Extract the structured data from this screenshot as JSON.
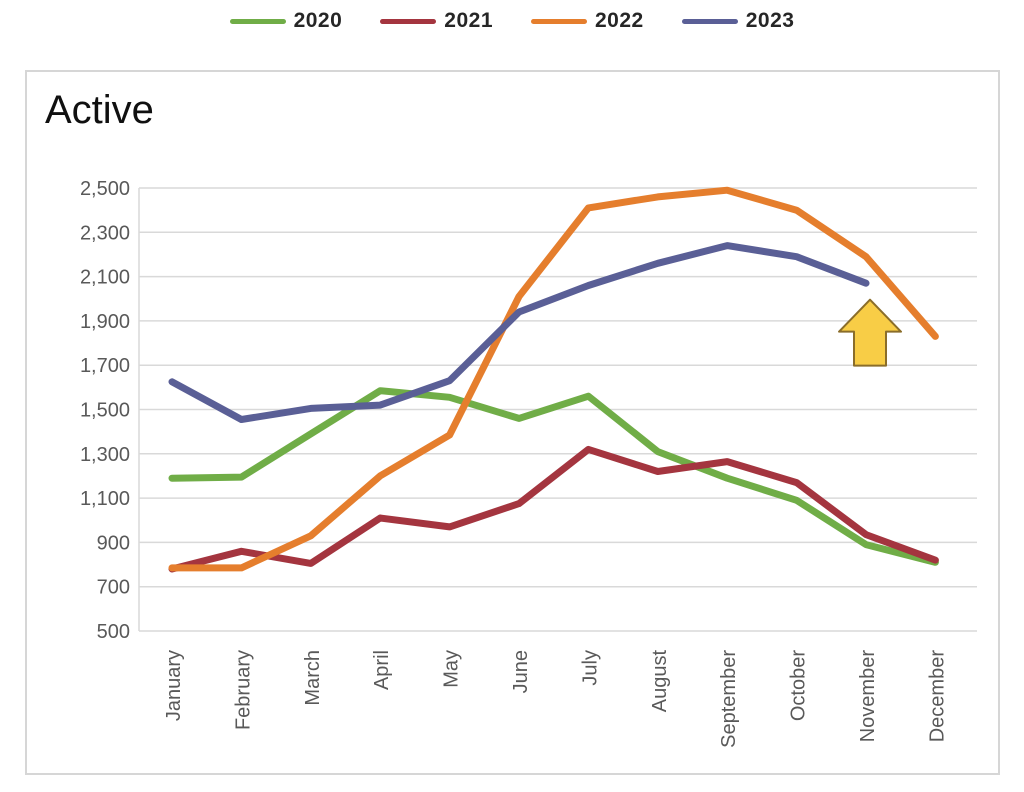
{
  "page": {
    "background": "#ffffff"
  },
  "legend": {
    "position": "top"
  },
  "chart_data": {
    "type": "line",
    "title": "Active",
    "xlabel": "",
    "ylabel": "",
    "x_categories": [
      "January",
      "February",
      "March",
      "April",
      "May",
      "June",
      "July",
      "August",
      "September",
      "October",
      "November",
      "December"
    ],
    "ylim": [
      500,
      2500
    ],
    "y_tick_step": 200,
    "y_tick_labels": [
      "2,500",
      "2,300",
      "2,100",
      "1,900",
      "1,700",
      "1,500",
      "1,300",
      "1,100",
      "900",
      "700",
      "500"
    ],
    "grid": true,
    "grid_color": "#d9d9d9",
    "axis_text_color": "#595959",
    "legend_position": "top",
    "series": [
      {
        "name": "2020",
        "color": "#70AD47",
        "values": [
          1190,
          1195,
          1390,
          1585,
          1555,
          1460,
          1560,
          1310,
          1190,
          1090,
          890,
          810
        ]
      },
      {
        "name": "2021",
        "color": "#A4353F",
        "values": [
          780,
          860,
          805,
          1010,
          970,
          1075,
          1320,
          1220,
          1265,
          1170,
          935,
          820
        ]
      },
      {
        "name": "2022",
        "color": "#E57E2D",
        "values": [
          785,
          785,
          930,
          1200,
          1385,
          2010,
          2410,
          2460,
          2490,
          2400,
          2190,
          1830
        ]
      },
      {
        "name": "2023",
        "color": "#5A5F96",
        "values": [
          1625,
          1455,
          1505,
          1520,
          1630,
          1940,
          2060,
          2160,
          2240,
          2190,
          2070,
          null
        ]
      }
    ],
    "annotation": {
      "shape": "up-arrow",
      "fill": "#F8CD46",
      "stroke": "#8A6D2A",
      "points_at": {
        "series": "2022",
        "month": "November"
      }
    }
  }
}
